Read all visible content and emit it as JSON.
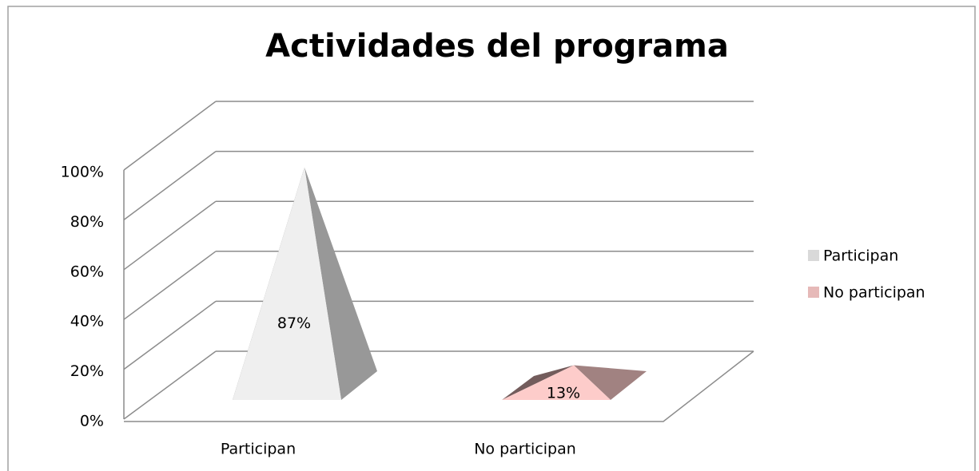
{
  "chart_data": {
    "type": "pyramid",
    "title": "Actividades del programa",
    "categories": [
      "Participan",
      "No participan"
    ],
    "values": [
      87,
      13
    ],
    "value_labels": [
      "87%",
      "13%"
    ],
    "colors": [
      "#d9d9d9",
      "#e6b9b8"
    ],
    "ylim": [
      0,
      100
    ],
    "yticks": [
      {
        "value": 0,
        "label": "0%"
      },
      {
        "value": 20,
        "label": "20%"
      },
      {
        "value": 40,
        "label": "40%"
      },
      {
        "value": 60,
        "label": "60%"
      },
      {
        "value": 80,
        "label": "80%"
      },
      {
        "value": 100,
        "label": "100%"
      }
    ],
    "grid": true,
    "legend": "right"
  }
}
